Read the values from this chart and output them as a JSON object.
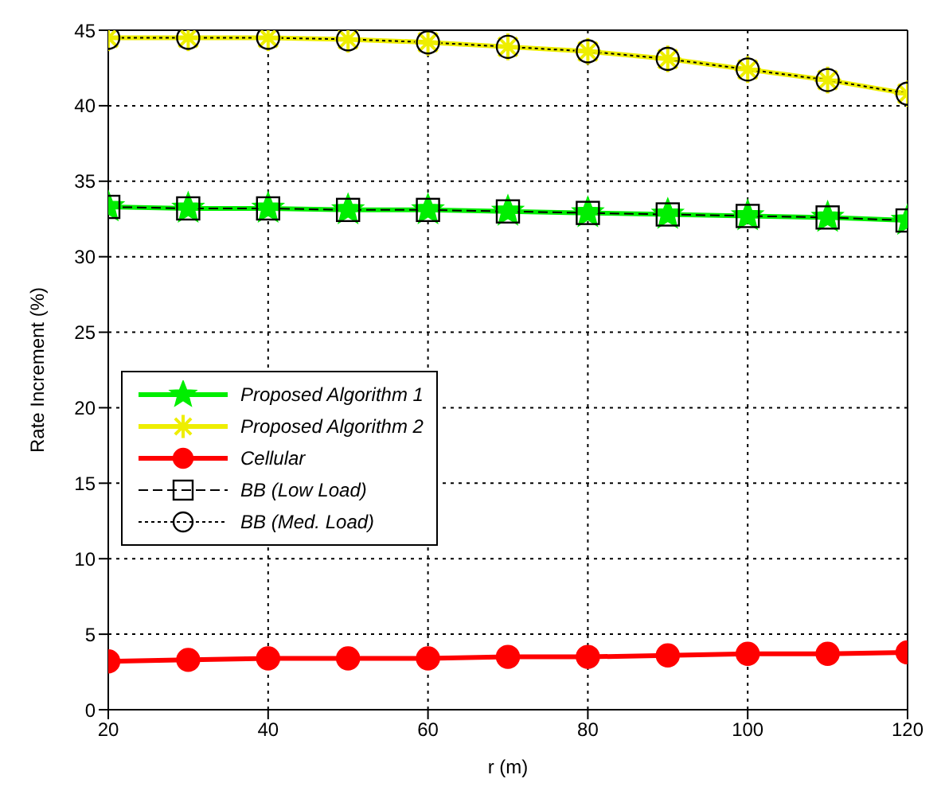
{
  "chart_data": {
    "type": "line",
    "xlabel": "r (m)",
    "ylabel": "Rate Increment (%)",
    "x": [
      20,
      30,
      40,
      50,
      60,
      70,
      80,
      90,
      100,
      110,
      120
    ],
    "xlim": [
      20,
      120
    ],
    "xticks": [
      20,
      40,
      60,
      80,
      100,
      120
    ],
    "ylim": [
      0,
      45
    ],
    "yticks": [
      0,
      5,
      10,
      15,
      20,
      25,
      30,
      35,
      40,
      45
    ],
    "grid": true,
    "legend": "left",
    "series": [
      {
        "name": "Proposed Algorithm 1",
        "color": "#00ee00",
        "marker": "star",
        "line_style": "solid",
        "values": [
          33.3,
          33.2,
          33.2,
          33.1,
          33.1,
          33.0,
          32.9,
          32.8,
          32.7,
          32.6,
          32.4
        ]
      },
      {
        "name": "Proposed Algorithm 2",
        "color": "#eeee00",
        "marker": "cross",
        "line_style": "solid",
        "values": [
          44.5,
          44.5,
          44.5,
          44.4,
          44.2,
          43.9,
          43.6,
          43.1,
          42.4,
          41.7,
          40.8
        ]
      },
      {
        "name": "Cellular",
        "color": "#ff0000",
        "marker": "circle",
        "line_style": "solid",
        "values": [
          3.2,
          3.3,
          3.4,
          3.4,
          3.4,
          3.5,
          3.5,
          3.6,
          3.7,
          3.7,
          3.8
        ]
      },
      {
        "name": "BB (Low Load)",
        "color": "#000000",
        "marker": "square",
        "line_style": "dashed",
        "values": [
          33.3,
          33.2,
          33.2,
          33.1,
          33.1,
          33.0,
          32.9,
          32.8,
          32.7,
          32.6,
          32.4
        ]
      },
      {
        "name": "BB (Med. Load)",
        "color": "#000000",
        "marker": "circle",
        "line_style": "dotted",
        "values": [
          44.5,
          44.5,
          44.5,
          44.4,
          44.2,
          43.9,
          43.6,
          43.1,
          42.4,
          41.7,
          40.8
        ]
      }
    ]
  }
}
